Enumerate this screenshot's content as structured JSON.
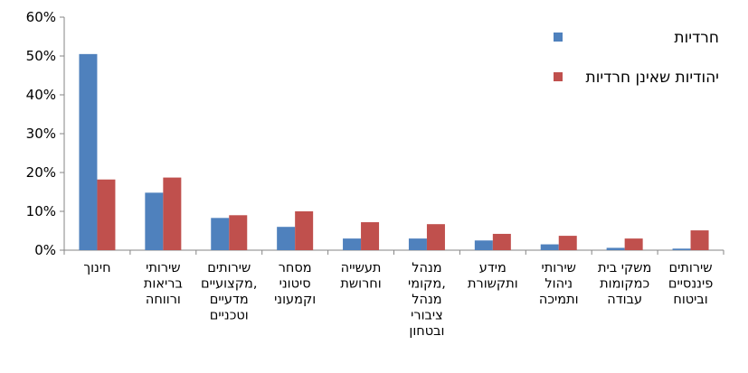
{
  "chart_data": {
    "type": "bar",
    "categories": [
      [
        "חינוך"
      ],
      [
        "שירותי",
        "בריאות",
        "ורווחה"
      ],
      [
        "שירותים",
        "מקצועיים,",
        "מדעיים",
        "וטכניים"
      ],
      [
        "מסחר",
        "סיטוני",
        "וקמעוני"
      ],
      [
        "תעשייה",
        "וחרושת"
      ],
      [
        "מנהל",
        "מקומי,",
        "מנהל",
        "ציבורי",
        "ובטחון"
      ],
      [
        "מידע",
        "ותקשורת"
      ],
      [
        "שירותי",
        "ניהול",
        "ותמיכה"
      ],
      [
        "משקי בית",
        "כמקומות",
        "עבודה"
      ],
      [
        "שירותים",
        "פיננסיים",
        "וביטוח"
      ]
    ],
    "series": [
      {
        "name": "חרדיות",
        "color": "#4F81BD",
        "values": [
          50.5,
          14.8,
          8.3,
          6.0,
          3.0,
          3.0,
          2.5,
          1.5,
          0.6,
          0.4
        ]
      },
      {
        "name": "יהודיות שאינן חרדיות",
        "color": "#C0504D",
        "values": [
          18.2,
          18.7,
          9.0,
          10.0,
          7.2,
          6.7,
          4.2,
          3.7,
          3.0,
          5.1
        ]
      }
    ],
    "yticks": [
      "0%",
      "10%",
      "20%",
      "30%",
      "40%",
      "50%",
      "60%"
    ],
    "ylim": [
      0,
      60
    ],
    "legend_position": "top-right",
    "grid": false
  }
}
